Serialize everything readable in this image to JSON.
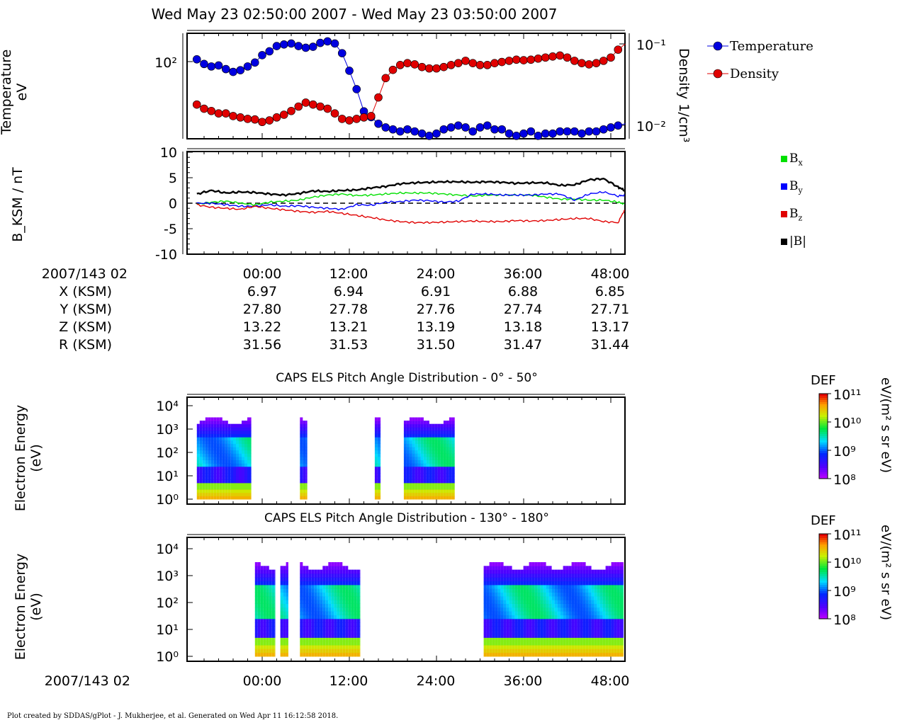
{
  "title": "Wed May 23 02:50:00 2007 - Wed May 23 03:50:00 2007",
  "footer": "Plot created by SDDAS/gPlot - J. Mukherjee, et al.  Generated on Wed Apr 11 16:12:58 2018.",
  "colors": {
    "temperature": "#0000e0",
    "density": "#e00000",
    "bx": "#00e000",
    "by": "#0000ff",
    "bz": "#e00000",
    "bmag": "#000000"
  },
  "ephemeris": {
    "time_label": "2007/143 02",
    "ticks": [
      "00:00",
      "12:00",
      "24:00",
      "36:00",
      "48:00"
    ],
    "rows": [
      {
        "label": "X (KSM)",
        "values": [
          "6.97",
          "6.94",
          "6.91",
          "6.88",
          "6.85"
        ]
      },
      {
        "label": "Y (KSM)",
        "values": [
          "27.80",
          "27.78",
          "27.76",
          "27.74",
          "27.71"
        ]
      },
      {
        "label": "Z (KSM)",
        "values": [
          "13.22",
          "13.21",
          "13.19",
          "13.18",
          "13.17"
        ]
      },
      {
        "label": "R (KSM)",
        "values": [
          "31.56",
          "31.53",
          "31.50",
          "31.47",
          "31.44"
        ]
      }
    ]
  },
  "bottom_axis": {
    "time_label": "2007/143 02",
    "ticks": [
      "00:00",
      "12:00",
      "24:00",
      "36:00",
      "48:00"
    ]
  },
  "chart_data": [
    {
      "type": "scatter",
      "ylabel": "Temperature\neV",
      "y2label": "Density 1/cm³",
      "y_ticks": [
        "10²"
      ],
      "y2_ticks": [
        "10⁻¹",
        "10⁻²"
      ],
      "legend": [
        "Temperature",
        "Density"
      ],
      "x_minutes": [
        -9,
        -8,
        -7,
        -6,
        -5,
        -4,
        -3,
        -2,
        -1,
        0,
        1,
        2,
        3,
        4,
        5,
        6,
        7,
        8,
        9,
        10,
        11,
        12,
        13,
        14,
        15,
        16,
        17,
        18,
        19,
        20,
        21,
        22,
        23,
        24,
        25,
        26,
        27,
        28,
        29,
        30,
        31,
        32,
        33,
        34,
        35,
        36,
        37,
        38,
        39,
        40,
        41,
        42,
        43,
        44,
        45,
        46,
        47,
        48,
        49,
        50
      ],
      "series": [
        {
          "name": "Temperature",
          "axis": "left",
          "values": [
            105,
            95,
            90,
            92,
            85,
            80,
            83,
            90,
            98,
            115,
            125,
            140,
            145,
            148,
            140,
            135,
            138,
            150,
            155,
            148,
            120,
            82,
            55,
            34,
            30,
            26,
            24,
            23,
            22,
            23,
            22,
            21,
            20,
            21,
            23,
            24,
            25,
            24,
            22,
            24,
            25,
            23,
            23,
            21,
            20,
            21,
            22,
            20,
            21,
            21,
            22,
            22,
            22,
            21,
            22,
            22,
            23,
            24,
            25,
            26
          ]
        },
        {
          "name": "Density",
          "axis": "right",
          "values": [
            0.018,
            0.016,
            0.015,
            0.014,
            0.014,
            0.013,
            0.0125,
            0.012,
            0.0118,
            0.011,
            0.0115,
            0.0125,
            0.0135,
            0.015,
            0.017,
            0.019,
            0.018,
            0.017,
            0.016,
            0.014,
            0.012,
            0.0115,
            0.012,
            0.0125,
            0.013,
            0.022,
            0.038,
            0.048,
            0.055,
            0.058,
            0.056,
            0.052,
            0.05,
            0.05,
            0.052,
            0.055,
            0.058,
            0.062,
            0.058,
            0.055,
            0.055,
            0.058,
            0.06,
            0.062,
            0.064,
            0.063,
            0.064,
            0.066,
            0.068,
            0.07,
            0.072,
            0.068,
            0.062,
            0.058,
            0.056,
            0.058,
            0.062,
            0.068,
            0.085,
            0.1
          ]
        }
      ]
    },
    {
      "type": "line",
      "ylabel": "B_KSM / nT",
      "ylim": [
        -10,
        10
      ],
      "y_ticks": [
        "10",
        "5",
        "0",
        "-5",
        "-10"
      ],
      "legend": [
        "Bx",
        "By",
        "Bz",
        "|B|"
      ],
      "x_minutes": [
        -9,
        -7,
        -5,
        -3,
        -1,
        1,
        3,
        5,
        7,
        9,
        11,
        13,
        15,
        17,
        19,
        21,
        23,
        25,
        27,
        29,
        31,
        33,
        35,
        37,
        39,
        41,
        43,
        45,
        47,
        49,
        50
      ],
      "series": [
        {
          "name": "Bx",
          "values": [
            -0.2,
            0.2,
            0.4,
            0.0,
            -0.3,
            0.2,
            0.4,
            0.6,
            1.2,
            1.6,
            1.8,
            1.5,
            1.6,
            1.8,
            2.0,
            2.0,
            2.0,
            1.8,
            1.6,
            1.4,
            1.6,
            1.6,
            1.6,
            1.6,
            1.2,
            0.8,
            0.8,
            0.6,
            0.6,
            0.2,
            -0.2
          ]
        },
        {
          "name": "By",
          "values": [
            0.0,
            0.0,
            -0.3,
            -0.6,
            -0.6,
            -0.3,
            -0.6,
            -0.5,
            -0.8,
            -1.0,
            -1.2,
            -0.3,
            -0.4,
            0.2,
            0.3,
            0.6,
            0.5,
            0.2,
            0.4,
            1.8,
            1.8,
            1.6,
            1.6,
            1.6,
            1.8,
            1.8,
            0.6,
            1.8,
            2.2,
            1.4,
            1.6
          ]
        },
        {
          "name": "Bz",
          "values": [
            -0.3,
            -0.8,
            -1.0,
            -1.2,
            -0.6,
            -1.0,
            -1.3,
            -1.6,
            -1.8,
            -1.6,
            -2.0,
            -2.4,
            -2.8,
            -3.3,
            -3.6,
            -3.8,
            -3.8,
            -3.7,
            -3.6,
            -3.5,
            -3.6,
            -3.6,
            -3.4,
            -3.5,
            -3.4,
            -3.2,
            -3.0,
            -3.0,
            -3.6,
            -3.8,
            -1.0
          ]
        },
        {
          "name": "|B|",
          "values": [
            1.8,
            2.5,
            2.0,
            2.2,
            2.1,
            1.8,
            1.6,
            1.9,
            2.4,
            2.3,
            2.5,
            2.6,
            3.0,
            3.3,
            3.8,
            4.0,
            4.1,
            4.2,
            4.2,
            4.1,
            4.2,
            4.1,
            3.9,
            4.0,
            4.0,
            3.5,
            3.6,
            4.6,
            4.8,
            3.2,
            2.4
          ]
        }
      ]
    },
    {
      "type": "heatmap",
      "title": "CAPS ELS Pitch Angle Distribution - 0° - 50°",
      "ylabel": "Electron Energy\n(eV)",
      "y_ticks": [
        "10⁴",
        "10³",
        "10²",
        "10¹",
        "10⁰"
      ],
      "colorbar": {
        "label": "DEF",
        "unit": "eV/(m² s sr eV)",
        "ticks": [
          "10¹¹",
          "10¹⁰",
          "10⁹",
          "10⁸"
        ],
        "range": [
          8,
          11
        ]
      },
      "data_intervals_minutes": [
        [
          -9,
          -4
        ],
        [
          -4,
          -1.5
        ],
        [
          5.2,
          6.2
        ],
        [
          15.5,
          16.3
        ],
        [
          19.5,
          26.5
        ]
      ]
    },
    {
      "type": "heatmap",
      "title": "CAPS ELS Pitch Angle Distribution - 130° - 180°",
      "ylabel": "Electron Energy\n(eV)",
      "y_ticks": [
        "10⁴",
        "10³",
        "10²",
        "10¹",
        "10⁰"
      ],
      "colorbar": {
        "label": "DEF",
        "unit": "eV/(m² s sr eV)",
        "ticks": [
          "10¹¹",
          "10¹⁰",
          "10⁹",
          "10⁸"
        ],
        "range": [
          8,
          11
        ]
      },
      "data_intervals_minutes": [
        [
          -1,
          1.8
        ],
        [
          2.5,
          3.6
        ],
        [
          5.2,
          13.5
        ],
        [
          30.5,
          50
        ]
      ]
    }
  ]
}
